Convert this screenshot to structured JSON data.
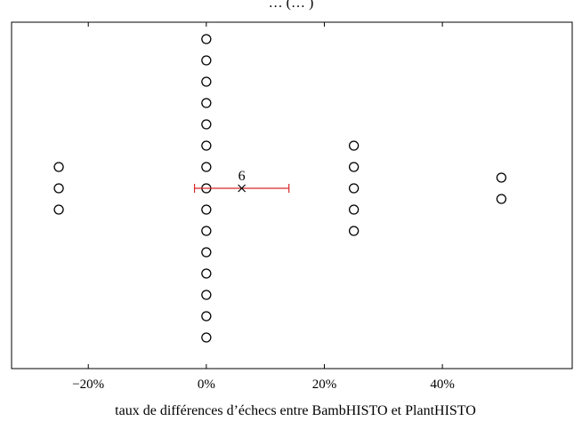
{
  "chart_data": {
    "type": "scatter",
    "title": "… (… )",
    "xlabel": "taux de différences d’échecs entre BambHISTO et PlantHISTO",
    "ylabel": "",
    "xlim": [
      -33,
      62
    ],
    "x_ticks": [
      -20,
      0,
      20,
      40
    ],
    "x_tick_labels": [
      "−20%",
      "0%",
      "20%",
      "40%"
    ],
    "grid": false,
    "legend": "none",
    "marker": "circle-open",
    "groups": [
      {
        "x": -25,
        "count": 3
      },
      {
        "x": 0,
        "count": 15
      },
      {
        "x": 25,
        "count": 5
      },
      {
        "x": 50,
        "count": 2
      }
    ],
    "mean": {
      "x": 6,
      "label": "6",
      "error_low": -2,
      "error_high": 14
    },
    "colors": {
      "marker": "#000000",
      "errorbar": "#d62728",
      "axis": "#000000"
    }
  }
}
